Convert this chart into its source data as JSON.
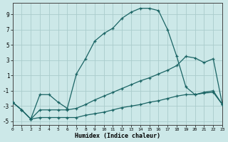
{
  "xlabel": "Humidex (Indice chaleur)",
  "background_color": "#cce8e8",
  "grid_color": "#aacccc",
  "line_color": "#1a6464",
  "xlim": [
    0,
    23
  ],
  "ylim": [
    -5.5,
    10.5
  ],
  "xticks": [
    0,
    1,
    2,
    3,
    4,
    5,
    6,
    7,
    8,
    9,
    10,
    11,
    12,
    13,
    14,
    15,
    16,
    17,
    18,
    19,
    20,
    21,
    22,
    23
  ],
  "yticks": [
    -5,
    -3,
    -1,
    1,
    3,
    5,
    7,
    9
  ],
  "lines": [
    {
      "x": [
        0,
        1,
        2,
        3,
        4,
        5,
        6,
        7,
        8,
        9,
        10,
        11,
        12,
        13,
        14,
        15,
        16,
        17,
        18,
        19,
        20,
        21,
        22,
        23
      ],
      "y": [
        -2.5,
        -3.5,
        -4.7,
        -1.5,
        -1.5,
        -2.5,
        -3.3,
        1.2,
        3.2,
        5.5,
        6.5,
        7.2,
        8.5,
        9.3,
        9.8,
        9.8,
        9.5,
        7.0,
        3.5,
        -0.5,
        -1.5,
        -1.3,
        -1.2,
        -2.8
      ]
    },
    {
      "x": [
        0,
        1,
        2,
        3,
        4,
        5,
        6,
        7,
        8,
        9,
        10,
        11,
        12,
        13,
        14,
        15,
        16,
        17,
        18,
        19,
        20,
        21,
        22,
        23
      ],
      "y": [
        -2.5,
        -3.5,
        -4.7,
        -3.5,
        -3.5,
        -3.5,
        -3.5,
        -3.3,
        -2.8,
        -2.2,
        -1.7,
        -1.2,
        -0.7,
        -0.2,
        0.3,
        0.7,
        1.2,
        1.7,
        2.3,
        3.5,
        3.3,
        2.7,
        3.2,
        -2.8
      ]
    },
    {
      "x": [
        0,
        1,
        2,
        3,
        4,
        5,
        6,
        7,
        8,
        9,
        10,
        11,
        12,
        13,
        14,
        15,
        16,
        17,
        18,
        19,
        20,
        21,
        22,
        23
      ],
      "y": [
        -2.5,
        -3.5,
        -4.7,
        -4.5,
        -4.5,
        -4.5,
        -4.5,
        -4.5,
        -4.2,
        -4.0,
        -3.8,
        -3.5,
        -3.2,
        -3.0,
        -2.8,
        -2.5,
        -2.3,
        -2.0,
        -1.7,
        -1.5,
        -1.5,
        -1.2,
        -1.0,
        -2.8
      ]
    }
  ]
}
